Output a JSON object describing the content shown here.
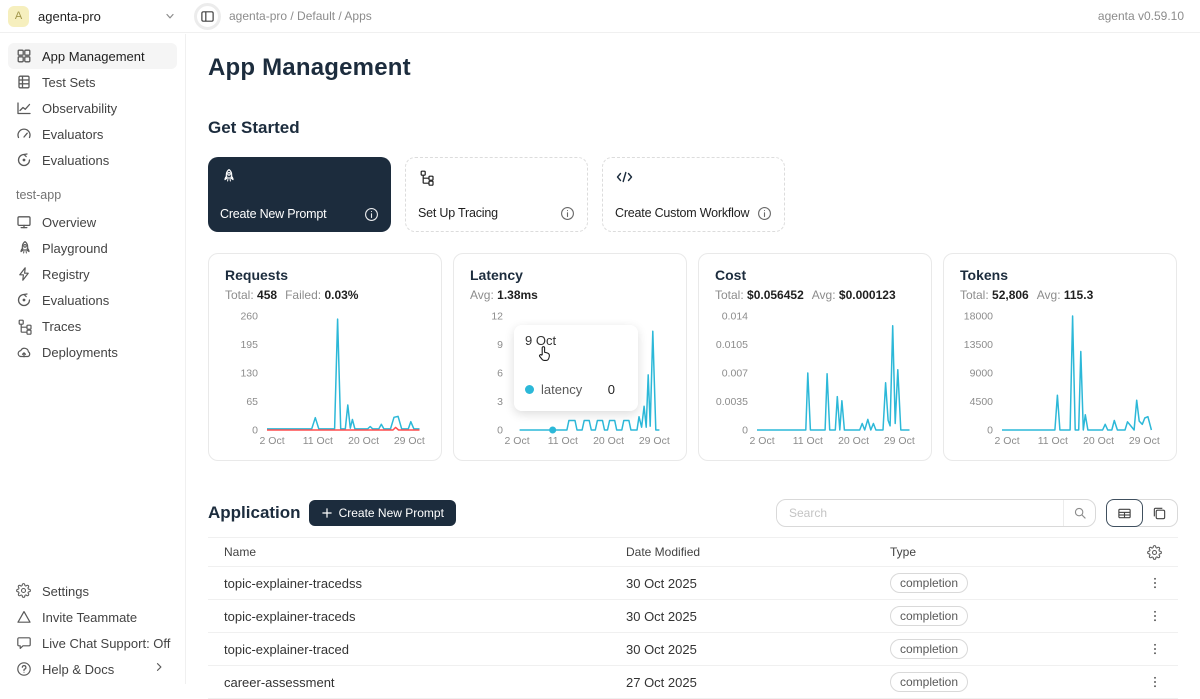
{
  "topbar": {
    "workspace": "agenta-pro",
    "avatar_letter": "A",
    "breadcrumb": "agenta-pro / Default / Apps",
    "version": "agenta v0.59.10"
  },
  "sidebar": {
    "main_items": [
      {
        "label": "App Management",
        "icon": "grid",
        "active": true
      },
      {
        "label": "Test Sets",
        "icon": "testset",
        "active": false
      },
      {
        "label": "Observability",
        "icon": "chartline",
        "active": false
      },
      {
        "label": "Evaluators",
        "icon": "gauge",
        "active": false
      },
      {
        "label": "Evaluations",
        "icon": "cycle",
        "active": false
      }
    ],
    "app_section_label": "test-app",
    "app_items": [
      {
        "label": "Overview",
        "icon": "monitor"
      },
      {
        "label": "Playground",
        "icon": "rocket"
      },
      {
        "label": "Registry",
        "icon": "lightning"
      },
      {
        "label": "Evaluations",
        "icon": "cycle"
      },
      {
        "label": "Traces",
        "icon": "tree"
      },
      {
        "label": "Deployments",
        "icon": "cloud"
      }
    ],
    "bottom_items": [
      {
        "label": "Settings",
        "icon": "gear"
      },
      {
        "label": "Invite Teammate",
        "icon": "triangle"
      },
      {
        "label": "Live Chat Support: Off",
        "icon": "chat"
      },
      {
        "label": "Help & Docs",
        "icon": "help",
        "chevron": true
      }
    ]
  },
  "page_title": "App Management",
  "get_started": {
    "title": "Get Started",
    "cards": [
      {
        "label": "Create New Prompt",
        "icon": "rocket"
      },
      {
        "label": "Set Up Tracing",
        "icon": "tree"
      },
      {
        "label": "Create Custom Workflow",
        "icon": "code"
      }
    ]
  },
  "metric_cards": [
    {
      "title": "Requests",
      "stats": [
        {
          "label": "Total:",
          "value": "458"
        },
        {
          "label": "Failed:",
          "value": "0.03%"
        }
      ],
      "chart": {
        "type": "line",
        "xlim": [
          1,
          31.5
        ],
        "ylim": [
          0,
          260
        ],
        "y_ticks": [
          {
            "v": 0,
            "l": "0"
          },
          {
            "v": 65,
            "l": "65"
          },
          {
            "v": 130,
            "l": "130"
          },
          {
            "v": 195,
            "l": "195"
          },
          {
            "v": 260,
            "l": "260"
          }
        ],
        "x_ticks": [
          {
            "v": 2,
            "l": "2 Oct"
          },
          {
            "v": 11,
            "l": "11 Oct"
          },
          {
            "v": 20,
            "l": "20 Oct"
          },
          {
            "v": 29,
            "l": "29 Oct"
          }
        ],
        "series": [
          {
            "name": "requests",
            "color": "#2cb8d8",
            "points": [
              [
                1,
                2.5
              ],
              [
                9.8,
                2.5
              ],
              [
                10.5,
                28
              ],
              [
                11.2,
                2.5
              ],
              [
                14.3,
                2.5
              ],
              [
                14.9,
                253
              ],
              [
                15.5,
                2.5
              ],
              [
                16.4,
                2.5
              ],
              [
                16.9,
                57
              ],
              [
                17.4,
                4
              ],
              [
                17.8,
                24
              ],
              [
                18.3,
                2.5
              ],
              [
                20.8,
                2.5
              ],
              [
                21.3,
                8
              ],
              [
                21.8,
                2.5
              ],
              [
                23,
                2.5
              ],
              [
                23.5,
                13
              ],
              [
                24,
                2.5
              ],
              [
                25.3,
                2.5
              ],
              [
                26,
                29
              ],
              [
                26.8,
                31
              ],
              [
                27.5,
                2.5
              ],
              [
                28.8,
                2.5
              ],
              [
                29.3,
                19
              ],
              [
                29.9,
                2.5
              ],
              [
                31,
                2.5
              ]
            ]
          },
          {
            "name": "failed",
            "color": "#ff4d4f",
            "points": [
              [
                1,
                0
              ],
              [
                25.8,
                0
              ],
              [
                26.3,
                6
              ],
              [
                26.9,
                0
              ],
              [
                31,
                0
              ]
            ]
          }
        ]
      }
    },
    {
      "title": "Latency",
      "stats": [
        {
          "label": "Avg:",
          "value": "1.38ms"
        }
      ],
      "chart": {
        "type": "line",
        "xlim": [
          1,
          31.5
        ],
        "ylim": [
          0,
          12
        ],
        "y_ticks": [
          {
            "v": 0,
            "l": "0"
          },
          {
            "v": 3,
            "l": "3"
          },
          {
            "v": 6,
            "l": "6"
          },
          {
            "v": 9,
            "l": "9"
          },
          {
            "v": 12,
            "l": "12"
          }
        ],
        "x_ticks": [
          {
            "v": 2,
            "l": "2 Oct"
          },
          {
            "v": 11,
            "l": "11 Oct"
          },
          {
            "v": 20,
            "l": "20 Oct"
          },
          {
            "v": 29,
            "l": "29 Oct"
          }
        ],
        "series": [
          {
            "name": "latency",
            "color": "#2cb8d8",
            "points": [
              [
                2.5,
                0
              ],
              [
                11.8,
                0
              ],
              [
                12.2,
                1
              ],
              [
                13.4,
                1
              ],
              [
                13.8,
                0
              ],
              [
                14.8,
                0
              ],
              [
                15.2,
                1
              ],
              [
                16.2,
                1
              ],
              [
                16.6,
                0
              ],
              [
                17.4,
                0
              ],
              [
                17.8,
                1
              ],
              [
                18.8,
                1
              ],
              [
                19.2,
                0
              ],
              [
                19.8,
                0
              ],
              [
                20.2,
                1
              ],
              [
                21.2,
                1
              ],
              [
                21.6,
                0
              ],
              [
                22.6,
                0
              ],
              [
                23,
                1
              ],
              [
                24,
                1
              ],
              [
                24.4,
                0
              ],
              [
                25.6,
                0
              ],
              [
                26,
                1.4
              ],
              [
                26.5,
                0.3
              ],
              [
                27,
                2.5
              ],
              [
                27.4,
                0.3
              ],
              [
                27.8,
                5.8
              ],
              [
                28.2,
                0.4
              ],
              [
                28.7,
                10.4
              ],
              [
                29.3,
                0
              ],
              [
                30,
                0
              ]
            ]
          }
        ],
        "markers": [
          {
            "x": 9,
            "y": 0,
            "color": "#2cb8d8"
          }
        ]
      }
    },
    {
      "title": "Cost",
      "stats": [
        {
          "label": "Total:",
          "value": "$0.056452"
        },
        {
          "label": "Avg:",
          "value": "$0.000123"
        }
      ],
      "chart": {
        "type": "line",
        "xlim": [
          1,
          31.5
        ],
        "ylim": [
          0,
          0.014
        ],
        "y_ticks": [
          {
            "v": 0,
            "l": "0"
          },
          {
            "v": 0.0035,
            "l": "0.0035"
          },
          {
            "v": 0.007,
            "l": "0.007"
          },
          {
            "v": 0.0105,
            "l": "0.0105"
          },
          {
            "v": 0.014,
            "l": "0.014"
          }
        ],
        "x_ticks": [
          {
            "v": 2,
            "l": "2 Oct"
          },
          {
            "v": 11,
            "l": "11 Oct"
          },
          {
            "v": 20,
            "l": "20 Oct"
          },
          {
            "v": 29,
            "l": "29 Oct"
          }
        ],
        "series": [
          {
            "name": "cost",
            "color": "#2cb8d8",
            "points": [
              [
                1,
                0
              ],
              [
                10.6,
                0
              ],
              [
                11,
                0.007
              ],
              [
                11.5,
                0
              ],
              [
                14.4,
                0
              ],
              [
                14.8,
                0.0069
              ],
              [
                15.3,
                0
              ],
              [
                16.4,
                0
              ],
              [
                16.8,
                0.0041
              ],
              [
                17.3,
                0
              ],
              [
                17.7,
                0.0036
              ],
              [
                18.2,
                0
              ],
              [
                21.2,
                0
              ],
              [
                21.7,
                0.0008
              ],
              [
                22.2,
                0
              ],
              [
                22.8,
                0.0013
              ],
              [
                23.4,
                0
              ],
              [
                23.9,
                0.0008
              ],
              [
                24.4,
                0
              ],
              [
                25.8,
                0
              ],
              [
                26.3,
                0.0058
              ],
              [
                26.8,
                0.0012
              ],
              [
                27.2,
                0.0005
              ],
              [
                27.7,
                0.0128
              ],
              [
                28.2,
                0.0008
              ],
              [
                28.7,
                0.0074
              ],
              [
                29.3,
                0
              ],
              [
                31,
                0
              ]
            ]
          }
        ]
      }
    },
    {
      "title": "Tokens",
      "stats": [
        {
          "label": "Total:",
          "value": "52,806"
        },
        {
          "label": "Avg:",
          "value": "115.3"
        }
      ],
      "chart": {
        "type": "line",
        "xlim": [
          1,
          31.5
        ],
        "ylim": [
          0,
          18000
        ],
        "y_ticks": [
          {
            "v": 0,
            "l": "0"
          },
          {
            "v": 4500,
            "l": "4500"
          },
          {
            "v": 9000,
            "l": "9000"
          },
          {
            "v": 13500,
            "l": "13500"
          },
          {
            "v": 18000,
            "l": "18000"
          }
        ],
        "x_ticks": [
          {
            "v": 2,
            "l": "2 Oct"
          },
          {
            "v": 11,
            "l": "11 Oct"
          },
          {
            "v": 20,
            "l": "20 Oct"
          },
          {
            "v": 29,
            "l": "29 Oct"
          }
        ],
        "series": [
          {
            "name": "tokens",
            "color": "#2cb8d8",
            "points": [
              [
                1,
                0
              ],
              [
                11.4,
                0
              ],
              [
                11.9,
                5500
              ],
              [
                12.4,
                0
              ],
              [
                14.4,
                0
              ],
              [
                14.9,
                18000
              ],
              [
                15.4,
                0
              ],
              [
                16.1,
                0
              ],
              [
                16.5,
                12400
              ],
              [
                17,
                0
              ],
              [
                17.4,
                2400
              ],
              [
                17.9,
                0
              ],
              [
                20.8,
                0
              ],
              [
                21.3,
                900
              ],
              [
                21.8,
                0
              ],
              [
                22.6,
                0
              ],
              [
                23.1,
                1500
              ],
              [
                23.7,
                0
              ],
              [
                25.2,
                0
              ],
              [
                25.7,
                1300
              ],
              [
                26.3,
                700
              ],
              [
                27,
                0
              ],
              [
                27.5,
                4700
              ],
              [
                28,
                1400
              ],
              [
                28.6,
                900
              ],
              [
                29.1,
                1900
              ],
              [
                29.7,
                2100
              ],
              [
                30.4,
                0
              ]
            ]
          }
        ]
      }
    }
  ],
  "tooltip": {
    "date": "9 Oct",
    "series": "latency",
    "value": "0"
  },
  "application": {
    "title": "Application",
    "create_button": "Create New Prompt",
    "search_placeholder": "Search",
    "columns": [
      "Name",
      "Date Modified",
      "Type"
    ],
    "rows": [
      {
        "name": "topic-explainer-tracedss",
        "date": "30 Oct 2025",
        "type": "completion"
      },
      {
        "name": "topic-explainer-traceds",
        "date": "30 Oct 2025",
        "type": "completion"
      },
      {
        "name": "topic-explainer-traced",
        "date": "30 Oct 2025",
        "type": "completion"
      },
      {
        "name": "career-assessment",
        "date": "27 Oct 2025",
        "type": "completion"
      }
    ]
  }
}
